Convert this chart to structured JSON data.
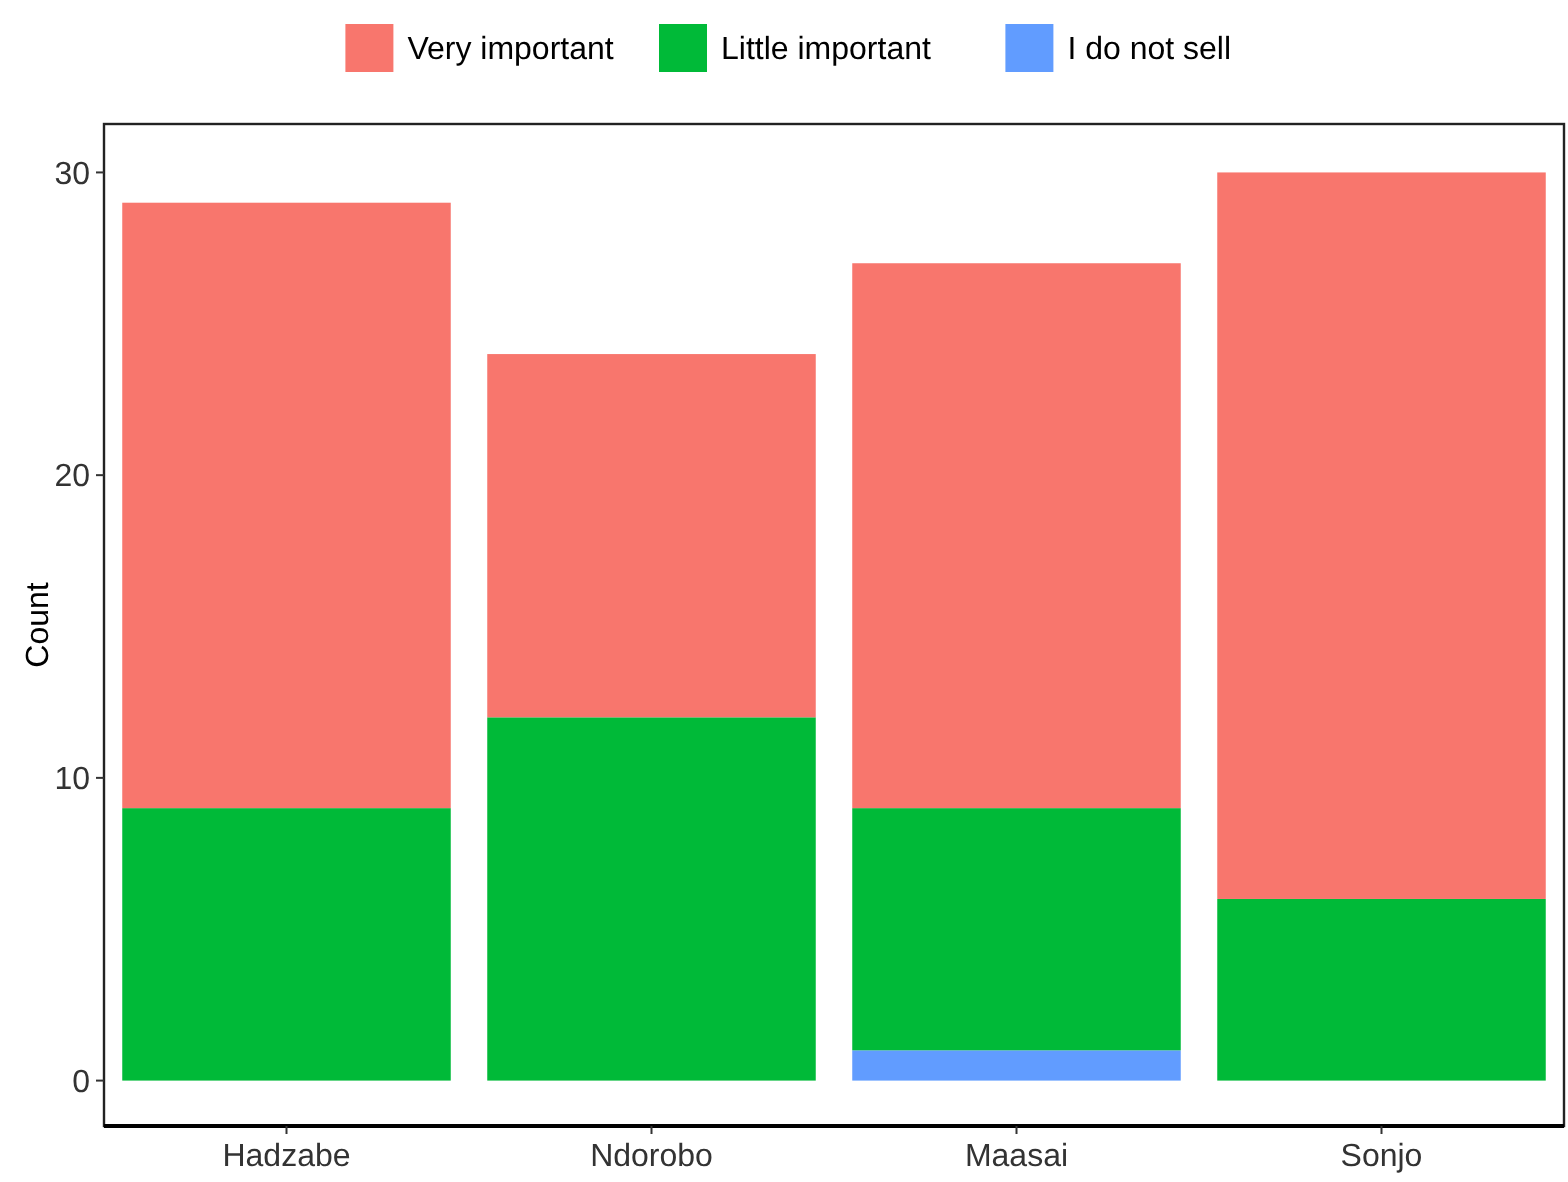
{
  "chart_data": {
    "type": "bar",
    "stacked": true,
    "ylabel": "Count",
    "categories": [
      "Hadzabe",
      "Ndorobo",
      "Maasai",
      "Sonjo"
    ],
    "series": [
      {
        "name": "I do not sell",
        "color": "#619cff",
        "values": [
          0,
          0,
          1,
          0
        ]
      },
      {
        "name": "Little important",
        "color": "#00ba38",
        "values": [
          9,
          12,
          8,
          6
        ]
      },
      {
        "name": "Very important",
        "color": "#f8766d",
        "values": [
          20,
          12,
          18,
          24
        ]
      }
    ],
    "ylim": [
      -1.5,
      31.6
    ],
    "yticks": [
      0,
      10,
      20,
      30
    ],
    "grid": false,
    "legend": "top"
  }
}
